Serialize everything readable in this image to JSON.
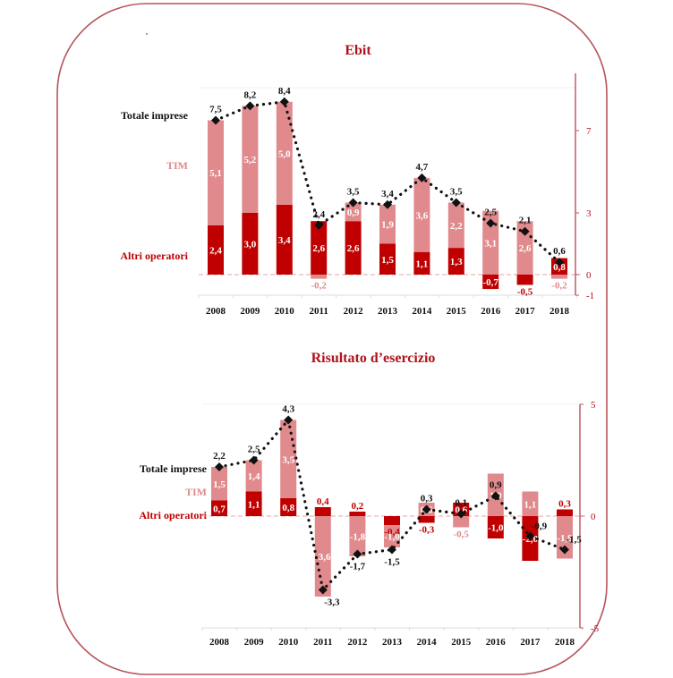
{
  "colors": {
    "tim": "#e08a8d",
    "altri": "#c00000",
    "totale": "#111111",
    "accent": "#b0121b",
    "frame": "#b5545a",
    "grid": "#eeeeee"
  },
  "chart_data": [
    {
      "type": "bar",
      "stacked": true,
      "title": "Ebit",
      "categories": [
        "2008",
        "2009",
        "2010",
        "2011",
        "2012",
        "2013",
        "2014",
        "2015",
        "2016",
        "2017",
        "2018"
      ],
      "series": [
        {
          "name": "Altri operatori",
          "values": [
            2.4,
            3.0,
            3.4,
            2.6,
            2.6,
            1.5,
            1.1,
            1.3,
            -0.7,
            -0.5,
            0.8
          ],
          "labels": [
            "2,4",
            "3,0",
            "3,4",
            "2,6",
            "2,6",
            "1,5",
            "1,1",
            "1,3",
            "-0,7",
            "-0,5",
            "0,8"
          ]
        },
        {
          "name": "TIM",
          "values": [
            5.1,
            5.2,
            5.0,
            -0.2,
            0.9,
            1.9,
            3.6,
            2.2,
            3.1,
            2.6,
            -0.2
          ],
          "labels": [
            "5,1",
            "5,2",
            "5,0",
            "-0,2",
            "0,9",
            "1,9",
            "3,6",
            "2,2",
            "3,1",
            "2,6",
            "-0,2"
          ]
        },
        {
          "name": "Totale imprese",
          "type": "line",
          "values": [
            7.5,
            8.2,
            8.4,
            2.4,
            3.5,
            3.4,
            4.7,
            3.5,
            2.5,
            2.1,
            0.6
          ],
          "labels": [
            "7,5",
            "8,2",
            "8,4",
            "2,4",
            "3,5",
            "3,4",
            "4,7",
            "3,5",
            "2,5",
            "2,1",
            "0,6"
          ]
        }
      ],
      "legend": [
        "Totale imprese",
        "TIM",
        "Altri operatori"
      ],
      "legend_position": "left",
      "ylim": [
        -1,
        9
      ],
      "yticks": [
        -1,
        0,
        3,
        7
      ],
      "ytick_labels": [
        "-1",
        "0",
        "3",
        "7"
      ],
      "y_axis_side": "right",
      "xlabel": "",
      "ylabel": ""
    },
    {
      "type": "bar",
      "stacked": true,
      "title": "Risultato d’esercizio",
      "categories": [
        "2008",
        "2009",
        "2010",
        "2011",
        "2012",
        "2013",
        "2014",
        "2015",
        "2016",
        "2017",
        "2018"
      ],
      "series": [
        {
          "name": "Altri operatori",
          "values": [
            0.7,
            1.1,
            0.8,
            0.4,
            0.2,
            -0.4,
            -0.3,
            0.6,
            -1.0,
            -2.0,
            0.3
          ],
          "labels": [
            "0,7",
            "1,1",
            "0,8",
            "0,4",
            "0,2",
            "-0,4",
            "-0,3",
            "0,6",
            "-1,0",
            "-2,0",
            "0,3"
          ]
        },
        {
          "name": "TIM",
          "values": [
            1.5,
            1.4,
            3.5,
            -3.6,
            -1.8,
            -1.0,
            0.6,
            -0.5,
            1.9,
            1.1,
            -1.9
          ],
          "labels": [
            "1,5",
            "1,4",
            "3,5",
            "-3,6",
            "-1,8",
            "-1,0",
            "0,6",
            "-0,5",
            "1,9",
            "1,1",
            "-1,9"
          ]
        },
        {
          "name": "Totale imprese",
          "type": "line",
          "values": [
            2.2,
            2.5,
            4.3,
            -3.3,
            -1.7,
            -1.5,
            0.3,
            0.1,
            0.9,
            -0.9,
            -1.5
          ],
          "labels": [
            "2,2",
            "2,5",
            "4,3",
            "-3,3",
            "-1,7",
            "-1,5",
            "0,3",
            "0,1",
            "0,9",
            "-0,9",
            "-1,5"
          ]
        }
      ],
      "legend": [
        "Totale imprese",
        "TIM",
        "Altri operatori"
      ],
      "legend_position": "left",
      "ylim": [
        -5,
        5
      ],
      "yticks": [
        -5,
        0,
        5
      ],
      "ytick_labels": [
        "-5",
        "0",
        "5"
      ],
      "y_axis_side": "right",
      "xlabel": "",
      "ylabel": ""
    }
  ]
}
